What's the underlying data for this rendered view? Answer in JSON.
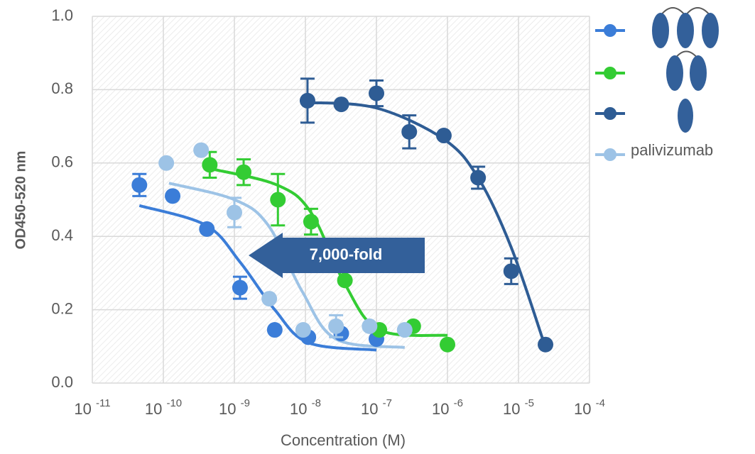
{
  "chart_data": {
    "type": "scatter",
    "x_label": "Concentration (M)",
    "y_label": "OD450-520 nm",
    "annotation": "7,000-fold",
    "xscale": "log",
    "xlim": [
      1e-11,
      0.0001
    ],
    "xticks": [
      {
        "value": 1e-11,
        "label": "10-11"
      },
      {
        "value": 1e-10,
        "label": "10-10"
      },
      {
        "value": 1e-09,
        "label": "10-9"
      },
      {
        "value": 1e-08,
        "label": "10-8"
      },
      {
        "value": 1e-07,
        "label": "10-7"
      },
      {
        "value": 1e-06,
        "label": "10-6"
      },
      {
        "value": 1e-05,
        "label": "10-5"
      },
      {
        "value": 0.0001,
        "label": "10-4"
      }
    ],
    "ylim": [
      0,
      1
    ],
    "yticks": [
      {
        "value": 0,
        "label": "0.0"
      },
      0.2,
      0.4,
      0.6,
      0.8,
      {
        "value": 1,
        "label": "1.0"
      }
    ],
    "grid": true,
    "legend": "right",
    "series": [
      {
        "color": "#3b7dd8",
        "x": [
          4.6e-11,
          1.35e-10,
          4.1e-10,
          1.2e-09,
          3.7e-09,
          1.1e-08,
          3.2e-08,
          1e-07
        ],
        "values": [
          0.54,
          0.51,
          0.42,
          0.26,
          0.145,
          0.125,
          0.135,
          0.12
        ],
        "errors": [
          0.03,
          null,
          null,
          0.03,
          null,
          null,
          null,
          null
        ],
        "fit_x": [
          4.6e-11,
          4e-10,
          1.2e-09,
          3.7e-09,
          1.1e-08,
          1e-07
        ],
        "fit_values": [
          0.484,
          0.43,
          0.33,
          0.2,
          0.11,
          0.09
        ]
      },
      {
        "color": "#33cc33",
        "x": [
          4.5e-10,
          1.35e-09,
          4.1e-09,
          1.2e-08,
          3.6e-08,
          1.1e-07,
          3.3e-07,
          1e-06
        ],
        "values": [
          0.595,
          0.575,
          0.5,
          0.44,
          0.28,
          0.145,
          0.155,
          0.105
        ],
        "errors": [
          0.035,
          0.035,
          0.07,
          0.035,
          null,
          null,
          null,
          null
        ],
        "fit_x": [
          4.5e-10,
          4e-09,
          1.2e-08,
          3.6e-08,
          1.1e-07,
          1e-06
        ],
        "fit_values": [
          0.585,
          0.54,
          0.465,
          0.27,
          0.145,
          0.13
        ]
      },
      {
        "color": "#2e5c94",
        "x": [
          1.07e-08,
          3.2e-08,
          1e-07,
          2.9e-07,
          8.9e-07,
          2.7e-06,
          7.9e-06,
          2.4e-05
        ],
        "values": [
          0.77,
          0.76,
          0.79,
          0.685,
          0.675,
          0.56,
          0.305,
          0.105
        ],
        "errors": [
          0.06,
          null,
          0.035,
          0.045,
          null,
          0.03,
          0.035,
          null
        ],
        "fit_x": [
          1.07e-08,
          1e-07,
          8.9e-07,
          2.7e-06,
          7.9e-06,
          2.4e-05
        ],
        "fit_values": [
          0.765,
          0.75,
          0.665,
          0.56,
          0.37,
          0.097
        ]
      },
      {
        "name": "palivizumab",
        "color": "#9dc3e6",
        "x": [
          1.1e-10,
          3.4e-10,
          1e-09,
          3.1e-09,
          9.3e-09,
          2.7e-08,
          8e-08,
          2.5e-07
        ],
        "values": [
          0.6,
          0.635,
          0.465,
          0.23,
          0.145,
          0.155,
          0.155,
          0.145
        ],
        "errors": [
          null,
          null,
          0.04,
          null,
          null,
          0.03,
          null,
          null
        ],
        "fit_x": [
          1.2e-10,
          1e-09,
          3e-09,
          9e-09,
          2.7e-08,
          2.5e-07
        ],
        "fit_values": [
          0.545,
          0.5,
          0.43,
          0.25,
          0.12,
          0.097
        ]
      }
    ]
  }
}
